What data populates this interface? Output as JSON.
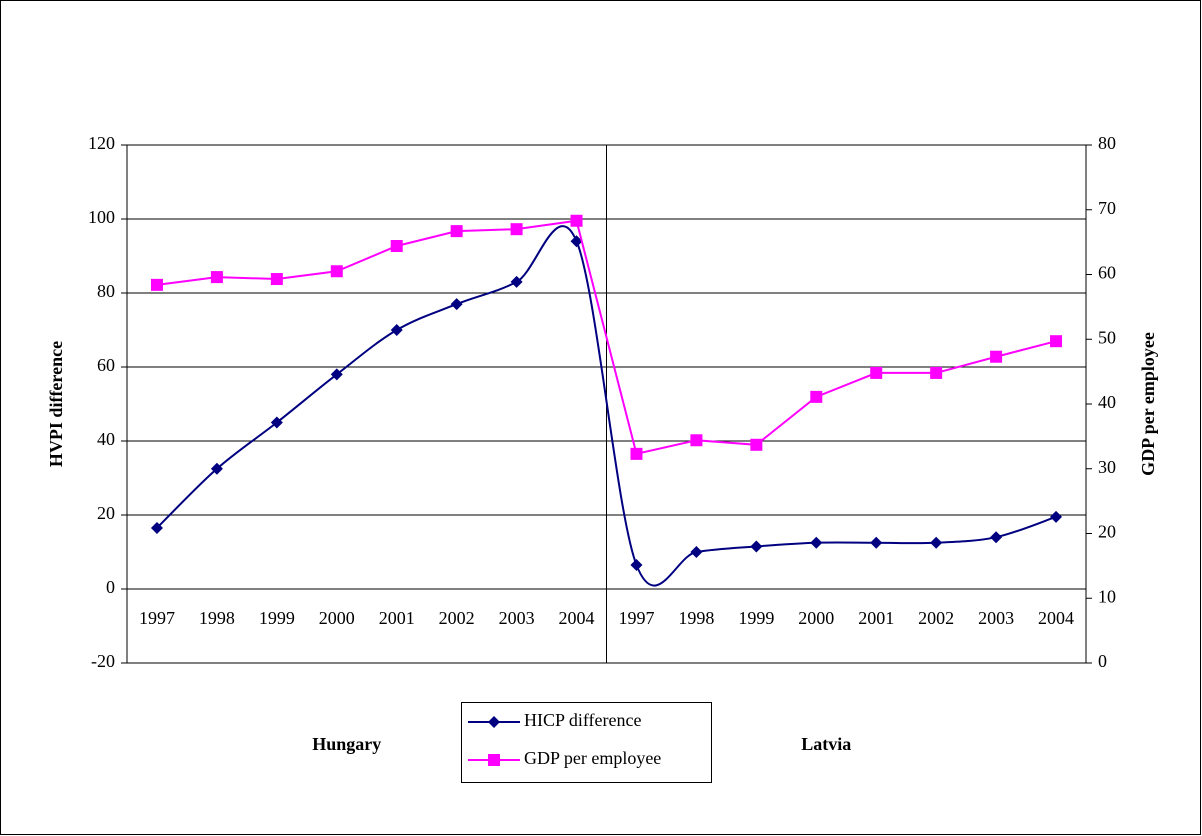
{
  "chart_data": {
    "type": "line",
    "categories": [
      "1997",
      "1998",
      "1999",
      "2000",
      "2001",
      "2002",
      "2003",
      "2004",
      "1997",
      "1998",
      "1999",
      "2000",
      "2001",
      "2002",
      "2003",
      "2004"
    ],
    "groups": [
      "Hungary",
      "Latvia"
    ],
    "y_label": "HVPI difference",
    "y2_label": "GDP per employee",
    "ylim": [
      -20,
      120
    ],
    "yticks": [
      -20,
      0,
      20,
      40,
      60,
      80,
      100,
      120
    ],
    "y2lim": [
      0,
      80
    ],
    "y2ticks": [
      0,
      10,
      20,
      30,
      40,
      50,
      60,
      70,
      80
    ],
    "grid": true,
    "legend": "bottom",
    "series": [
      {
        "name": "HICP difference",
        "color": "#000080",
        "marker": "diamond",
        "smooth": true,
        "values": [
          16.5,
          32.5,
          45,
          58,
          70,
          77,
          83,
          94,
          6.5,
          10,
          11.5,
          12.5,
          12.5,
          12.5,
          14,
          19.5
        ]
      },
      {
        "name": "GDP per employee",
        "color": "#ff00ff",
        "marker": "square",
        "axis": "y2",
        "values": [
          58.4,
          59.6,
          59.3,
          60.5,
          64.4,
          66.7,
          67,
          68.3,
          32.3,
          34.4,
          33.7,
          41.1,
          44.8,
          44.8,
          47.3,
          49.7
        ]
      }
    ]
  }
}
